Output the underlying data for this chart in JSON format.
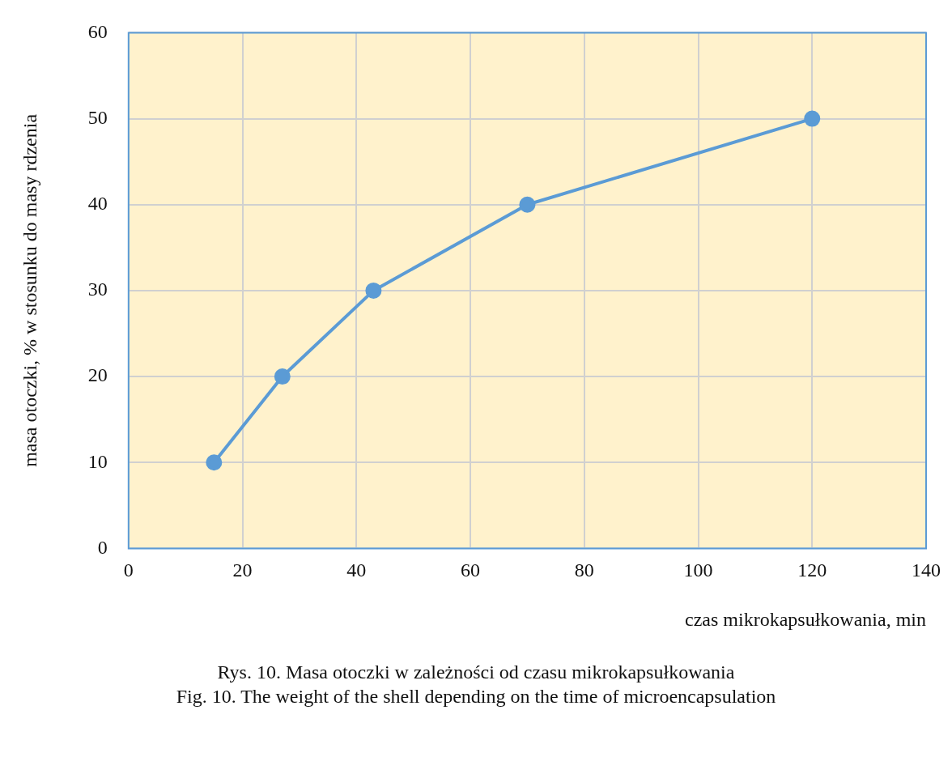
{
  "chart_data": {
    "type": "line",
    "xlabel": "czas mikrokapsułkowania, min",
    "ylabel": "masa otoczki, % w stosunku do masy rdzenia",
    "x": [
      15,
      27,
      43,
      70,
      120
    ],
    "series": [
      {
        "color": "#5b9bd5",
        "values": [
          10,
          20,
          30,
          40,
          50
        ]
      }
    ],
    "xlim": [
      0,
      140
    ],
    "xticks": [
      0,
      20,
      40,
      60,
      80,
      100,
      120,
      140
    ],
    "ylim": [
      0,
      60
    ],
    "yticks": [
      0,
      10,
      20,
      30,
      40,
      50,
      60
    ],
    "grid": true,
    "legend": false,
    "marker": "circle",
    "line_style": "solid",
    "annotations": [
      "Rys. 10. Masa otoczki w zależności od czasu mikrokapsułkowania",
      "Fig. 10. The weight of the shell depending on the time of microencapsulation"
    ]
  }
}
